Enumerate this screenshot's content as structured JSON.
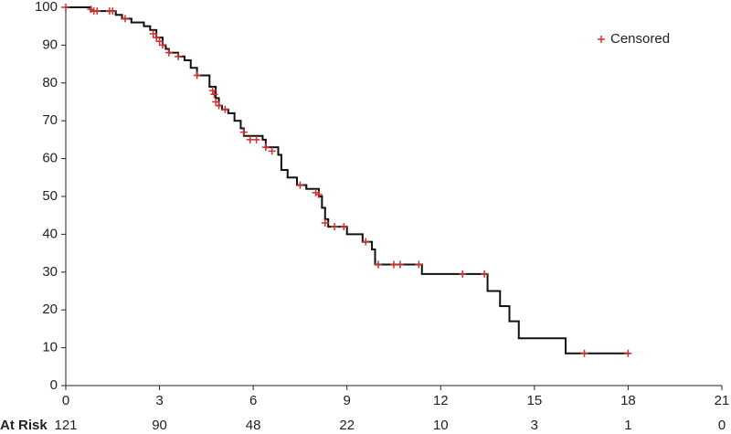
{
  "chart_data": {
    "type": "step",
    "x": [
      0,
      0.8,
      1.6,
      1.8,
      2.1,
      2.5,
      2.7,
      2.9,
      3.1,
      3.2,
      3.3,
      3.6,
      3.8,
      4.0,
      4.2,
      4.6,
      4.8,
      4.9,
      5.0,
      5.2,
      5.4,
      5.6,
      5.7,
      6.3,
      6.4,
      6.8,
      6.9,
      7.1,
      7.4,
      7.7,
      8.1,
      8.2,
      8.3,
      8.4,
      9.0,
      9.5,
      9.8,
      9.9,
      11.4,
      13.5,
      13.9,
      14.2,
      14.5,
      16.0,
      18.0
    ],
    "values": [
      100,
      99,
      98,
      97,
      96,
      95,
      94,
      92,
      90,
      89,
      88,
      87,
      86,
      84,
      82,
      79,
      76,
      74,
      73,
      72,
      70,
      68,
      66,
      65,
      63,
      61,
      57,
      55,
      53,
      52,
      50,
      47,
      44,
      42,
      40,
      38,
      36,
      32,
      29.5,
      25,
      21,
      17,
      12.5,
      8.5,
      8.5
    ],
    "color": "#111111",
    "censored": {
      "name": "Censored",
      "color": "#d03030",
      "x": [
        0,
        0.8,
        0.9,
        1.0,
        1.4,
        1.5,
        1.9,
        2.8,
        2.9,
        3.0,
        3.1,
        3.3,
        3.6,
        4.2,
        4.7,
        4.75,
        4.8,
        4.9,
        5.1,
        5.7,
        5.9,
        6.1,
        6.4,
        6.6,
        7.5,
        8.0,
        8.1,
        8.3,
        8.6,
        8.9,
        9.6,
        10.0,
        10.5,
        10.7,
        11.3,
        12.7,
        13.4,
        16.6,
        18.0
      ],
      "values": [
        100,
        99.5,
        99,
        99,
        99,
        99,
        97,
        93,
        92,
        91,
        90,
        88,
        87,
        82,
        78,
        77,
        75,
        74,
        73,
        67,
        65,
        65,
        63,
        62,
        53,
        51,
        50.5,
        43,
        42,
        42,
        38,
        32,
        32,
        32,
        32,
        29.5,
        29.5,
        8.5,
        8.5
      ]
    },
    "xlim": [
      0,
      21
    ],
    "xticks": [
      0,
      3,
      6,
      9,
      12,
      15,
      18,
      21
    ],
    "ylim": [
      0,
      100
    ],
    "yticks": [
      0,
      10,
      20,
      30,
      40,
      50,
      60,
      70,
      80,
      90,
      100
    ],
    "legend": "upper right",
    "at_risk": {
      "label": "At Risk",
      "values": [
        121,
        90,
        48,
        22,
        10,
        3,
        1,
        0
      ]
    }
  }
}
